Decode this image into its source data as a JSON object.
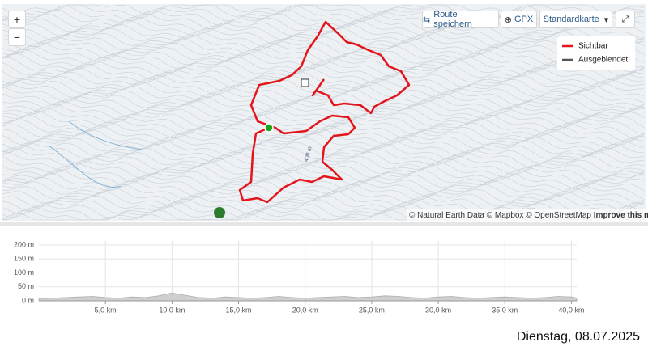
{
  "map": {
    "zoom_in": "+",
    "zoom_out": "−",
    "save_route": "Route speichern",
    "gpx": "GPX",
    "map_style": "Standardkarte",
    "legend": [
      "Sichtbar",
      "Ausgeblendet"
    ],
    "attribution": "© Natural Earth Data © Mapbox © OpenStreetMap",
    "improve": "Improve this map",
    "contour_label": "400 m"
  },
  "chart_data": {
    "type": "area",
    "color": "#cfcfcf",
    "x": [
      0,
      1,
      2,
      3,
      4,
      5,
      6,
      7,
      8,
      9,
      10,
      11,
      12,
      13,
      14,
      15,
      16,
      17,
      18,
      19,
      20,
      21,
      22,
      23,
      24,
      25,
      26,
      27,
      28,
      29,
      30,
      31,
      32,
      33,
      34,
      35,
      36,
      37,
      38,
      39,
      40,
      40.4
    ],
    "values": [
      8,
      10,
      12,
      14,
      16,
      12,
      10,
      14,
      12,
      18,
      28,
      20,
      12,
      10,
      14,
      12,
      10,
      12,
      16,
      12,
      10,
      12,
      14,
      16,
      12,
      14,
      18,
      16,
      12,
      10,
      14,
      16,
      12,
      10,
      12,
      14,
      12,
      10,
      12,
      16,
      14,
      10
    ],
    "xlim": [
      0,
      40.4
    ],
    "ylim": [
      0,
      200
    ],
    "xticks": [
      {
        "value": 5,
        "label": "5,0 km"
      },
      {
        "value": 10,
        "label": "10,0 km"
      },
      {
        "value": 15,
        "label": "15,0 km"
      },
      {
        "value": 20,
        "label": "20,0 km"
      },
      {
        "value": 25,
        "label": "25,0 km"
      },
      {
        "value": 30,
        "label": "30,0 km"
      },
      {
        "value": 35,
        "label": "35,0 km"
      },
      {
        "value": 40,
        "label": "40,0 km"
      }
    ],
    "yticks": [
      {
        "value": 0,
        "label": "0 m"
      },
      {
        "value": 50,
        "label": "50 m"
      },
      {
        "value": 100,
        "label": "100 m"
      },
      {
        "value": 150,
        "label": "150 m"
      },
      {
        "value": 200,
        "label": "200 m"
      }
    ],
    "grid": true
  },
  "footer": {
    "date": "Dienstag, 08.07.2025"
  }
}
